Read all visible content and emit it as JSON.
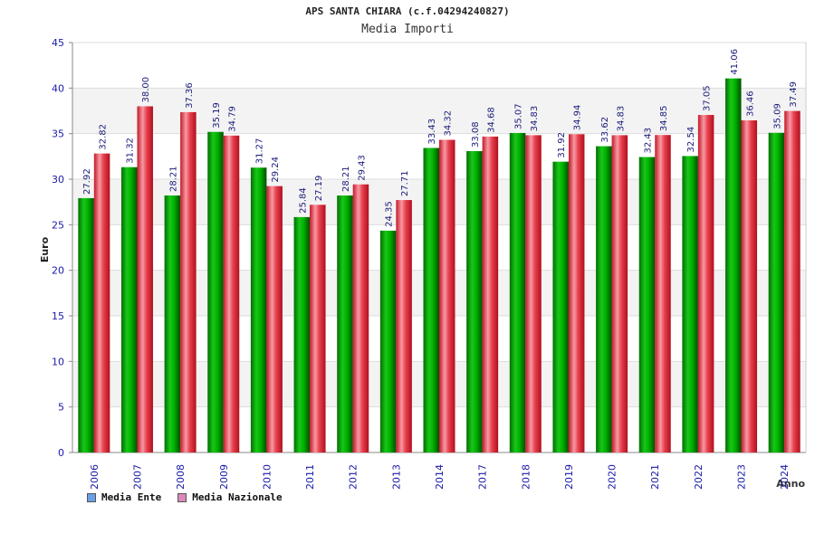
{
  "chart": {
    "title": "APS SANTA CHIARA (c.f.04294240827)",
    "subtitle": "Media Importi"
  },
  "chart_data": {
    "type": "bar",
    "title": "APS SANTA CHIARA (c.f.04294240827)",
    "subtitle": "Media Importi",
    "xlabel": "Anno",
    "ylabel": "Euro",
    "ylim": [
      0,
      45
    ],
    "yticks": [
      0,
      5,
      10,
      15,
      20,
      25,
      30,
      35,
      40,
      45
    ],
    "grid": true,
    "legend_position": "bottom-left",
    "categories": [
      "2006",
      "2007",
      "2008",
      "2009",
      "2010",
      "2011",
      "2012",
      "2013",
      "2014",
      "2017",
      "2018",
      "2019",
      "2020",
      "2021",
      "2022",
      "2023",
      "2024"
    ],
    "series": [
      {
        "name": "Media Ente",
        "color": "#00a000",
        "values": [
          27.92,
          31.32,
          28.21,
          35.19,
          31.27,
          25.84,
          28.21,
          24.35,
          33.43,
          33.08,
          35.07,
          31.92,
          33.62,
          32.43,
          32.54,
          41.06,
          35.09
        ],
        "labels": [
          "27.92",
          "31.32",
          "28.21",
          "35.19",
          "31.27",
          "25.84",
          "28.21",
          "24.35",
          "33.43",
          "33.08",
          "35.07",
          "31.92",
          "33.62",
          "32.43",
          "32.54",
          "41.06",
          "35.09"
        ]
      },
      {
        "name": "Media Nazionale",
        "color": "#e0303a",
        "values": [
          32.82,
          38.0,
          37.36,
          34.79,
          29.24,
          27.19,
          29.43,
          27.71,
          34.32,
          34.68,
          34.83,
          34.94,
          34.83,
          34.85,
          37.05,
          36.46,
          37.49
        ],
        "labels": [
          "32.82",
          "38.00",
          "37.36",
          "34.79",
          "29.24",
          "27.19",
          "29.43",
          "27.71",
          "34.32",
          "34.68",
          "34.83",
          "34.94",
          "34.83",
          "34.85",
          "37.05",
          "36.46",
          "37.49"
        ]
      }
    ],
    "legend": [
      {
        "name": "Media Ente",
        "swatch_color": "#6aa0e8"
      },
      {
        "name": "Media Nazionale",
        "swatch_color": "#d98ab8"
      }
    ]
  }
}
